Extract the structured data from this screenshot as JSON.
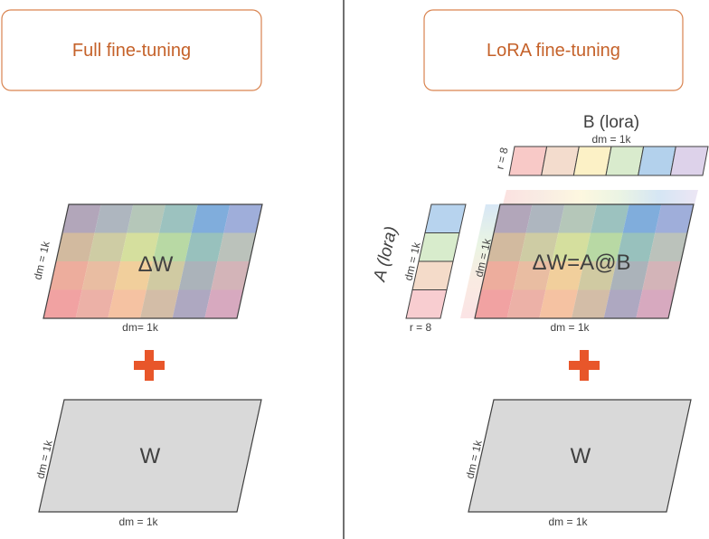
{
  "left_panel": {
    "title": "Full fine-tuning",
    "delta_matrix": {
      "label": "ΔW",
      "side_label": "dm = 1k",
      "bottom_label": "dm= 1k"
    },
    "operator": "plus-icon",
    "base_matrix": {
      "label": "W",
      "side_label": "dm = 1k",
      "bottom_label": "dm = 1k"
    }
  },
  "right_panel": {
    "title": "LoRA fine-tuning",
    "b_matrix": {
      "label": "B (lora)",
      "top_label": "dm = 1k",
      "side_label": "r = 8"
    },
    "a_matrix": {
      "label": "A (lora)",
      "side_label": "dm = 1k",
      "bottom_label": "r = 8"
    },
    "delta_matrix": {
      "label": "ΔW=A@B",
      "side_label": "dm = 1k",
      "bottom_label": "dm = 1k"
    },
    "operator": "plus-icon",
    "base_matrix": {
      "label": "W",
      "side_label": "dm = 1k",
      "bottom_label": "dm = 1k"
    }
  },
  "colors": {
    "accent_orange": "#e8562a",
    "title_text": "#c5622a",
    "title_border": "#d9834f",
    "divider": "#404040",
    "matrix_gray": "#d9d9d9",
    "b_row": [
      "#f8c9c7",
      "#f3dccd",
      "#fcf1c6",
      "#d9ebcd",
      "#b3d1ec",
      "#ddd2ea"
    ],
    "a_col": [
      "#b7d3ee",
      "#d8eccc",
      "#f4dbc9",
      "#f8cdd0"
    ]
  }
}
